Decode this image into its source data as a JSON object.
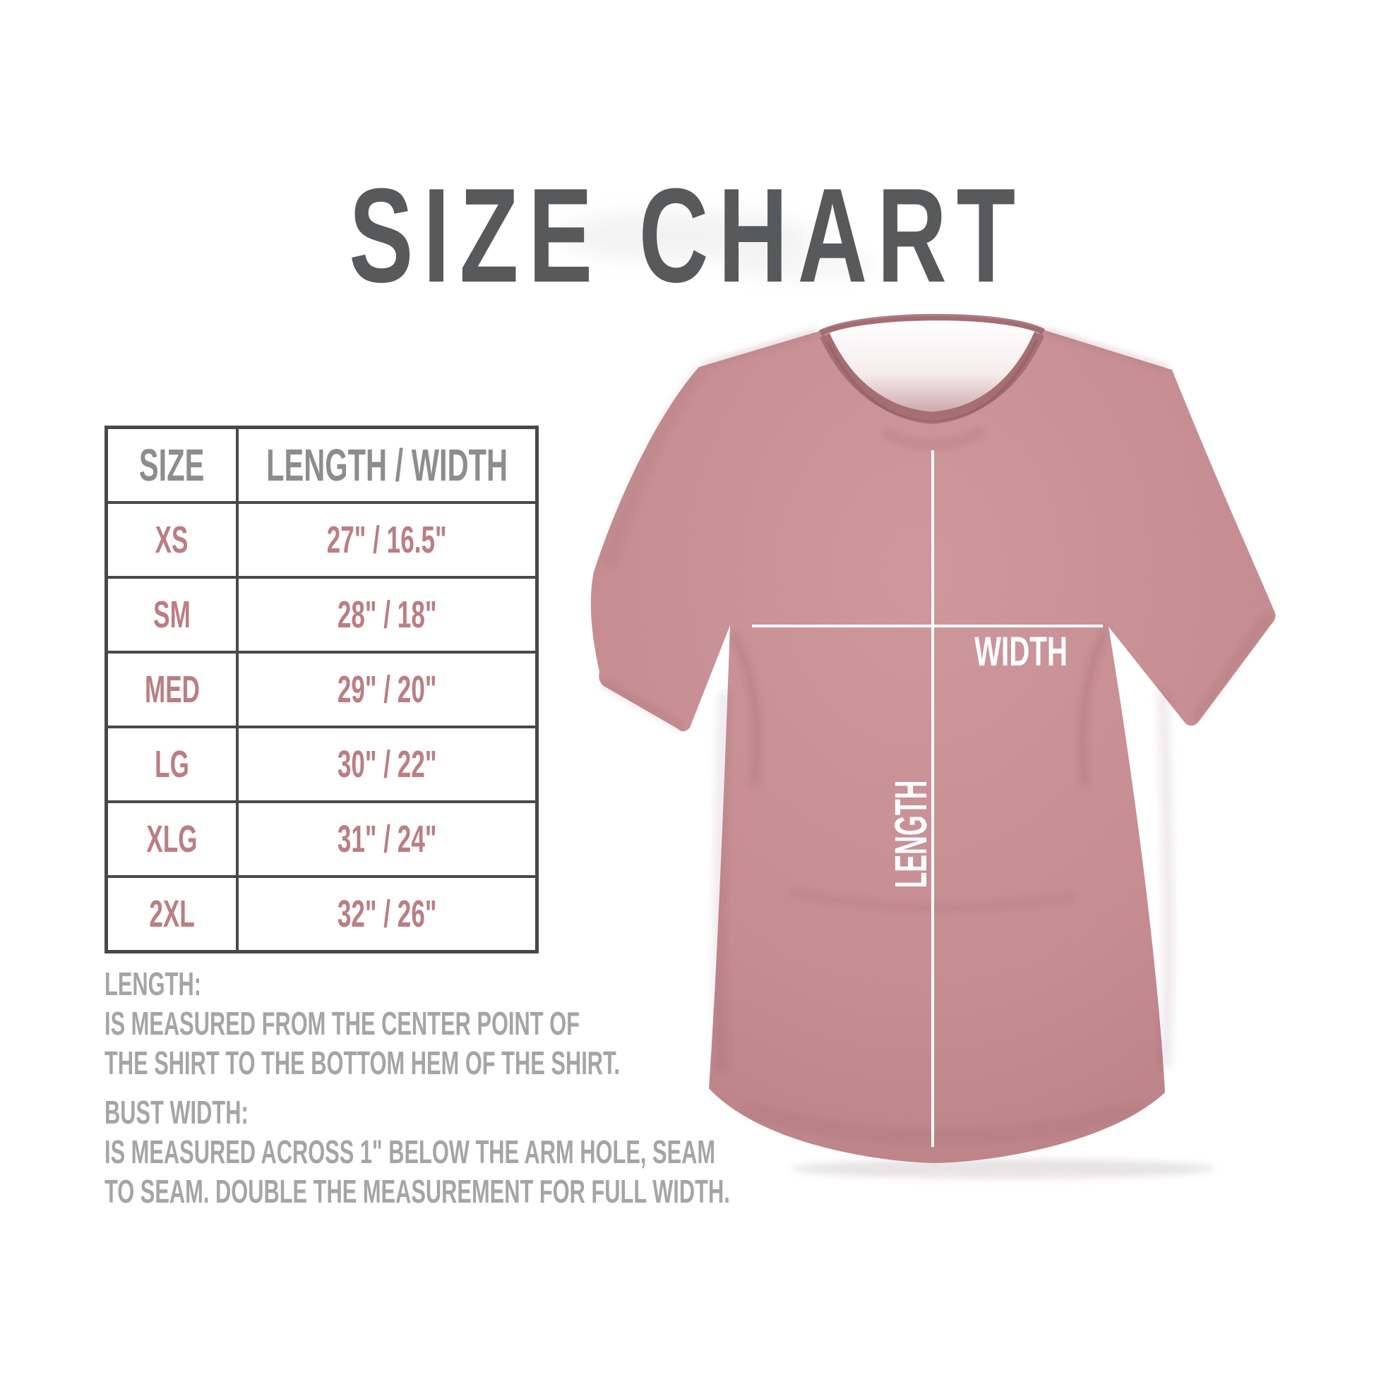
{
  "title": "SIZE CHART",
  "table": {
    "headers": [
      "SIZE",
      "LENGTH / WIDTH"
    ],
    "rows": [
      {
        "size": "XS",
        "measurement": "27\" / 16.5\""
      },
      {
        "size": "SM",
        "measurement": "28\" / 18\""
      },
      {
        "size": "MED",
        "measurement": "29\" / 20\""
      },
      {
        "size": "LG",
        "measurement": "30\" / 22\""
      },
      {
        "size": "XLG",
        "measurement": "31\" / 24\""
      },
      {
        "size": "2XL",
        "measurement": "32\" / 26\""
      }
    ]
  },
  "notes": [
    {
      "label": "LENGTH:",
      "lines": [
        "IS MEASURED FROM THE CENTER POINT OF",
        "THE SHIRT TO THE BOTTOM HEM OF THE SHIRT."
      ]
    },
    {
      "label": "BUST WIDTH:",
      "lines": [
        "IS MEASURED ACROSS 1\" BELOW THE ARM HOLE, SEAM",
        "TO SEAM. DOUBLE THE MEASUREMENT FOR FULL WIDTH."
      ]
    }
  ],
  "diagram": {
    "width_label": "WIDTH",
    "length_label": "LENGTH"
  },
  "colors": {
    "title_text": "#58595b",
    "table_border": "#47494b",
    "header_text": "#8c8d8f",
    "size_text": "#bb7e83",
    "notes_text": "#a4a5a7",
    "shirt_fabric": "#c78e92",
    "collar": "#a56f74",
    "measure_line": "#ffffff"
  }
}
